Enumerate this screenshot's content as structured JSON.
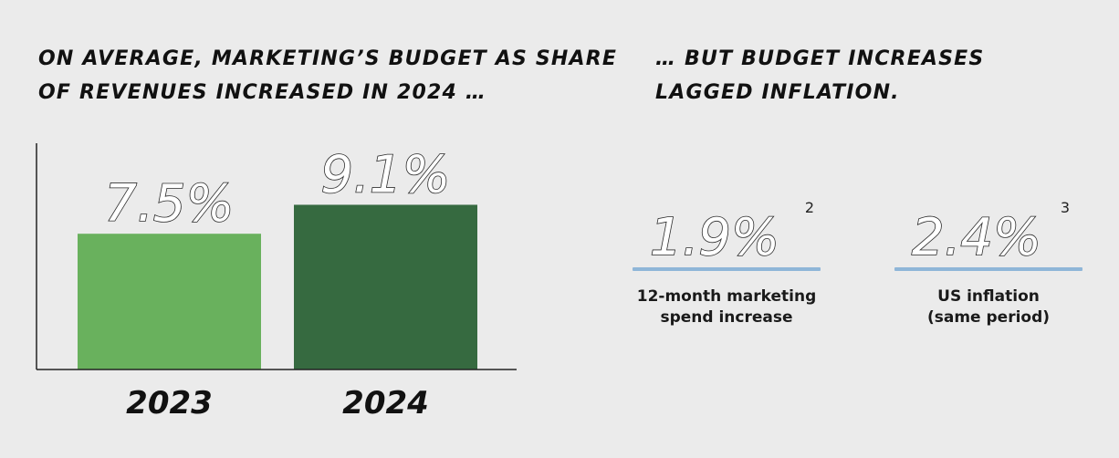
{
  "colors": {
    "background": "#ebebeb",
    "bar_2023": "#69b15d",
    "bar_2024": "#366a40",
    "stat_rule": "#8fb6d8",
    "axis": "#222222"
  },
  "left_panel": {
    "heading_line1": "ON AVERAGE, MARKETING’S BUDGET AS SHARE",
    "heading_line2": "OF REVENUES INCREASED IN 2024 …"
  },
  "right_panel": {
    "heading_line1": "… BUT BUDGET INCREASES",
    "heading_line2": "LAGGED INFLATION.",
    "stats": [
      {
        "value": "1.9%",
        "footnote": "2",
        "caption_line1": "12-month marketing",
        "caption_line2": "spend increase"
      },
      {
        "value": "2.4%",
        "footnote": "3",
        "caption_line1": "US inflation",
        "caption_line2": "(same period)"
      }
    ]
  },
  "chart_data": {
    "type": "bar",
    "categories": [
      "2023",
      "2024"
    ],
    "values": [
      7.5,
      9.1
    ],
    "data_labels": [
      "7.5%",
      "9.1%"
    ],
    "bar_colors": [
      "#69b15d",
      "#366a40"
    ],
    "ylim": [
      0,
      12.5
    ],
    "grid": false,
    "legend": "none"
  }
}
